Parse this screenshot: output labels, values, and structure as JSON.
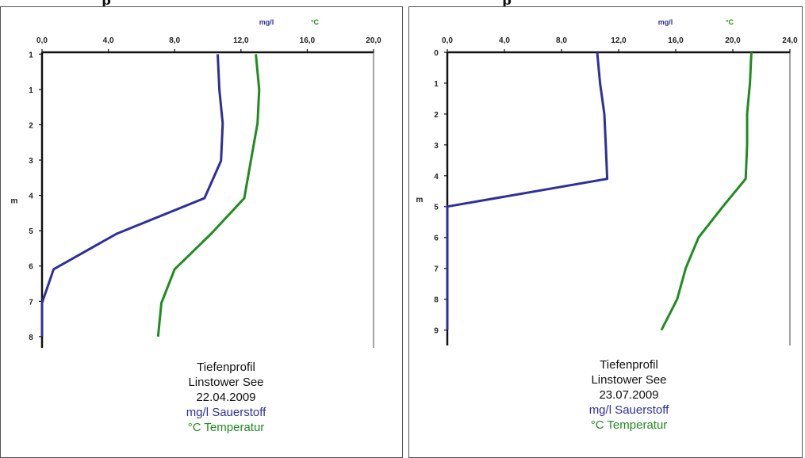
{
  "header_fragments": [
    "p",
    "p"
  ],
  "colors": {
    "oxygen": "#2e2e9e",
    "temperature": "#1e8c1e",
    "axis": "#111111",
    "text": "#111111"
  },
  "chart_data": [
    {
      "type": "line",
      "orientation": "depth-profile",
      "title": "Tiefenprofil",
      "lake": "Linstower See",
      "date": "22.04.2009",
      "legend": [
        {
          "text": "mg/l Sauerstoff",
          "color": "#2e2e9e"
        },
        {
          "text": "°C Temperatur",
          "color": "#1e8c1e"
        }
      ],
      "top_units": {
        "oxygen": "mg/l",
        "temperature": "°C"
      },
      "xlabel": "",
      "ylabel": "m",
      "xlim": [
        0,
        20.0
      ],
      "xticks": [
        "0,0",
        "4,0",
        "8,0",
        "12,0",
        "16,0",
        "20,0"
      ],
      "yticks": [
        "1",
        "1",
        "2",
        "3",
        "4",
        "5",
        "6",
        "7",
        "8"
      ],
      "ylim": [
        0.5,
        8.4
      ],
      "series": [
        {
          "name": "mg/l Sauerstoff",
          "color": "#2e2e9e",
          "x": [
            10.6,
            10.7,
            10.9,
            10.8,
            9.8,
            4.5,
            0.7,
            0.0,
            0.0
          ],
          "y": [
            0.55,
            1.5,
            2.4,
            3.4,
            4.4,
            5.35,
            6.3,
            7.2,
            8.1
          ]
        },
        {
          "name": "°C Temperatur",
          "color": "#1e8c1e",
          "x": [
            12.9,
            13.1,
            13.0,
            12.6,
            12.2,
            10.2,
            8.0,
            7.2,
            7.0
          ],
          "y": [
            0.55,
            1.5,
            2.4,
            3.4,
            4.4,
            5.35,
            6.3,
            7.2,
            8.1
          ]
        }
      ]
    },
    {
      "type": "line",
      "orientation": "depth-profile",
      "title": "Tiefenprofil",
      "lake": "Linstower See",
      "date": "23.07.2009",
      "legend": [
        {
          "text": "mg/l Sauerstoff",
          "color": "#2e2e9e"
        },
        {
          "text": "°C Temperatur",
          "color": "#1e8c1e"
        }
      ],
      "top_units": {
        "oxygen": "mg/l",
        "temperature": "°C"
      },
      "xlabel": "",
      "ylabel": "m",
      "xlim": [
        0,
        24.0
      ],
      "xticks": [
        "0,0",
        "4,0",
        "8,0",
        "12,0",
        "16,0",
        "20,0",
        "24,0"
      ],
      "yticks": [
        "0",
        "1",
        "2",
        "3",
        "4",
        "5",
        "6",
        "7",
        "8",
        "9"
      ],
      "ylim": [
        0,
        9.5
      ],
      "series": [
        {
          "name": "mg/l Sauerstoff",
          "color": "#2e2e9e",
          "x": [
            10.5,
            10.7,
            11.0,
            11.1,
            11.2,
            0.0,
            0.0,
            0.0,
            0.0,
            0.0
          ],
          "y": [
            0,
            1,
            2,
            3,
            4.1,
            5,
            6,
            7,
            8,
            9
          ]
        },
        {
          "name": "°C Temperatur",
          "color": "#1e8c1e",
          "x": [
            21.3,
            21.2,
            21.0,
            21.0,
            20.9,
            19.3,
            17.6,
            16.7,
            16.1,
            15.0
          ],
          "y": [
            0,
            1,
            2,
            3,
            4.1,
            5,
            6,
            7,
            8,
            9
          ]
        }
      ]
    }
  ]
}
